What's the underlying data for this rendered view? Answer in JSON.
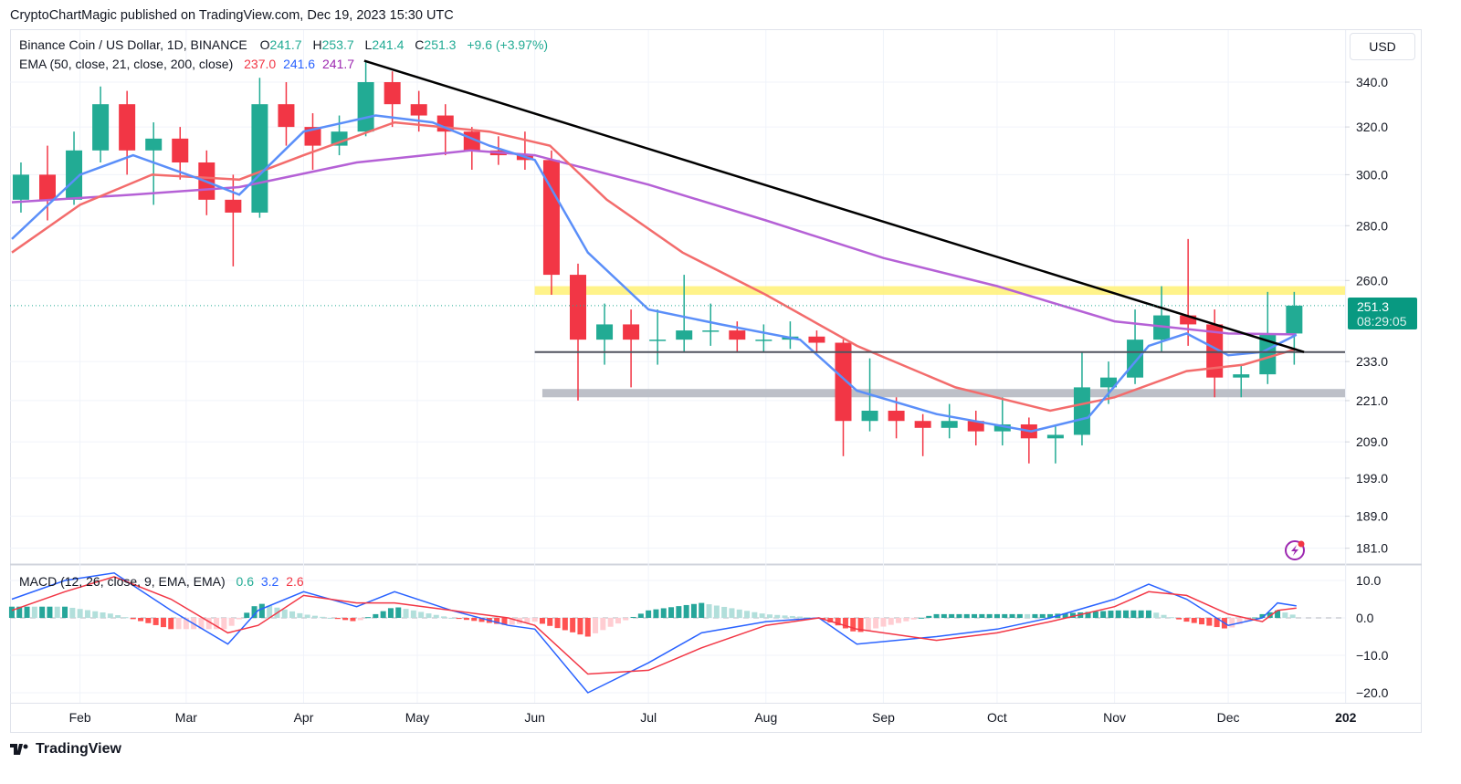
{
  "header": {
    "published": "CryptoChartMagic published on TradingView.com, Dec 19, 2023 15:30 UTC"
  },
  "legend": {
    "symbol": "Binance Coin / US Dollar, 1D, BINANCE",
    "o_label": "O",
    "o": "241.7",
    "h_label": "H",
    "h": "253.7",
    "l_label": "L",
    "l": "241.4",
    "c_label": "C",
    "c": "251.3",
    "change": "+9.6 (+3.97%)",
    "ema_label": "EMA (50, close, 21, close, 200, close)",
    "ema50": "237.0",
    "ema21": "241.6",
    "ema200": "241.7",
    "macd_label": "MACD (12, 26, close, 9, EMA, EMA)",
    "macd_hist": "0.6",
    "macd": "3.2",
    "macd_signal": "2.6"
  },
  "currency": "USD",
  "last_price": {
    "value": "251.3",
    "countdown": "08:29:05"
  },
  "footer": {
    "brand": "TradingView"
  },
  "colors": {
    "up": "#22ab94",
    "down": "#f23645",
    "ema21": "#5b8ff9",
    "ema50": "#f36c6c",
    "ema200": "#b561d6",
    "resistance": "#fff176",
    "support": "#b2b5be",
    "trendline": "#000000",
    "macd": "#2962ff",
    "signal": "#f23645"
  },
  "chart_data": {
    "type": "candlestick",
    "scale": "log",
    "ylim": [
      178,
      352
    ],
    "price_ticks": [
      "340.0",
      "320.0",
      "300.0",
      "280.0",
      "260.0",
      "233.0",
      "221.0",
      "209.0",
      "199.0",
      "189.0",
      "181.0"
    ],
    "time_ticks": [
      {
        "label": "Feb",
        "date": "2023-02-01"
      },
      {
        "label": "Mar",
        "date": "2023-03-01"
      },
      {
        "label": "Apr",
        "date": "2023-04-01"
      },
      {
        "label": "May",
        "date": "2023-05-01"
      },
      {
        "label": "Jun",
        "date": "2023-06-01"
      },
      {
        "label": "Jul",
        "date": "2023-07-01"
      },
      {
        "label": "Aug",
        "date": "2023-08-01"
      },
      {
        "label": "Sep",
        "date": "2023-09-01"
      },
      {
        "label": "Oct",
        "date": "2023-10-01"
      },
      {
        "label": "Nov",
        "date": "2023-11-01"
      },
      {
        "label": "Dec",
        "date": "2023-12-01"
      },
      {
        "label": "202",
        "date": "2024-01-01"
      }
    ],
    "candles_weekly_ohlc": [
      [
        "2023-01-14",
        290,
        305,
        285,
        300
      ],
      [
        "2023-01-21",
        300,
        312,
        282,
        290
      ],
      [
        "2023-01-28",
        290,
        318,
        288,
        310
      ],
      [
        "2023-02-04",
        310,
        338,
        305,
        330
      ],
      [
        "2023-02-11",
        330,
        336,
        300,
        310
      ],
      [
        "2023-02-18",
        310,
        322,
        288,
        315
      ],
      [
        "2023-02-25",
        315,
        320,
        298,
        305
      ],
      [
        "2023-03-04",
        305,
        310,
        284,
        290
      ],
      [
        "2023-03-11",
        290,
        300,
        265,
        285
      ],
      [
        "2023-03-18",
        285,
        342,
        283,
        330
      ],
      [
        "2023-03-25",
        330,
        340,
        312,
        320
      ],
      [
        "2023-04-01",
        320,
        326,
        302,
        312
      ],
      [
        "2023-04-08",
        312,
        325,
        308,
        318
      ],
      [
        "2023-04-15",
        318,
        350,
        316,
        340
      ],
      [
        "2023-04-22",
        340,
        345,
        320,
        330
      ],
      [
        "2023-04-29",
        330,
        336,
        318,
        325
      ],
      [
        "2023-05-06",
        325,
        330,
        308,
        318
      ],
      [
        "2023-05-13",
        318,
        320,
        302,
        310
      ],
      [
        "2023-05-20",
        310,
        316,
        304,
        308
      ],
      [
        "2023-05-27",
        308,
        318,
        302,
        306
      ],
      [
        "2023-06-03",
        306,
        310,
        255,
        262
      ],
      [
        "2023-06-10",
        262,
        266,
        221,
        240
      ],
      [
        "2023-06-17",
        240,
        252,
        232,
        245
      ],
      [
        "2023-06-24",
        245,
        250,
        225,
        240
      ],
      [
        "2023-07-01",
        240,
        250,
        232,
        240
      ],
      [
        "2023-07-08",
        240,
        262,
        236,
        243
      ],
      [
        "2023-07-15",
        243,
        252,
        238,
        243
      ],
      [
        "2023-07-22",
        243,
        246,
        236,
        240
      ],
      [
        "2023-07-29",
        240,
        245,
        236,
        240
      ],
      [
        "2023-08-05",
        240,
        246,
        237,
        241
      ],
      [
        "2023-08-12",
        241,
        243,
        236,
        239
      ],
      [
        "2023-08-19",
        239,
        240,
        205,
        215
      ],
      [
        "2023-08-26",
        215,
        234,
        212,
        218
      ],
      [
        "2023-09-02",
        218,
        222,
        210,
        215
      ],
      [
        "2023-09-09",
        215,
        217,
        205,
        213
      ],
      [
        "2023-09-16",
        213,
        220,
        210,
        215
      ],
      [
        "2023-09-23",
        215,
        218,
        208,
        212
      ],
      [
        "2023-09-30",
        212,
        222,
        208,
        214
      ],
      [
        "2023-10-07",
        214,
        216,
        203,
        210
      ],
      [
        "2023-10-14",
        210,
        214,
        203,
        211
      ],
      [
        "2023-10-21",
        211,
        236,
        208,
        225
      ],
      [
        "2023-10-28",
        225,
        233,
        220,
        228
      ],
      [
        "2023-11-04",
        228,
        250,
        226,
        240
      ],
      [
        "2023-11-11",
        240,
        258,
        236,
        248
      ],
      [
        "2023-11-18",
        248,
        275,
        238,
        245
      ],
      [
        "2023-11-25",
        245,
        250,
        222,
        228
      ],
      [
        "2023-12-02",
        228,
        232,
        222,
        229
      ],
      [
        "2023-12-09",
        229,
        256,
        226,
        242
      ],
      [
        "2023-12-16",
        242,
        256,
        232,
        251.3
      ]
    ],
    "ema21": [
      [
        "2023-01-14",
        275
      ],
      [
        "2023-02-01",
        300
      ],
      [
        "2023-02-15",
        308
      ],
      [
        "2023-03-05",
        298
      ],
      [
        "2023-03-15",
        292
      ],
      [
        "2023-04-01",
        318
      ],
      [
        "2023-04-20",
        325
      ],
      [
        "2023-05-05",
        322
      ],
      [
        "2023-05-20",
        312
      ],
      [
        "2023-06-01",
        306
      ],
      [
        "2023-06-15",
        270
      ],
      [
        "2023-07-01",
        250
      ],
      [
        "2023-07-20",
        245
      ],
      [
        "2023-08-10",
        240
      ],
      [
        "2023-08-25",
        224
      ],
      [
        "2023-09-15",
        217
      ],
      [
        "2023-10-10",
        212
      ],
      [
        "2023-10-25",
        216
      ],
      [
        "2023-11-10",
        238
      ],
      [
        "2023-11-20",
        242
      ],
      [
        "2023-12-01",
        235
      ],
      [
        "2023-12-10",
        236
      ],
      [
        "2023-12-19",
        241.6
      ]
    ],
    "ema50": [
      [
        "2023-01-14",
        270
      ],
      [
        "2023-02-01",
        288
      ],
      [
        "2023-02-20",
        300
      ],
      [
        "2023-03-15",
        298
      ],
      [
        "2023-04-01",
        308
      ],
      [
        "2023-04-25",
        322
      ],
      [
        "2023-05-20",
        318
      ],
      [
        "2023-06-05",
        312
      ],
      [
        "2023-06-20",
        290
      ],
      [
        "2023-07-10",
        270
      ],
      [
        "2023-08-01",
        255
      ],
      [
        "2023-08-25",
        238
      ],
      [
        "2023-09-20",
        225
      ],
      [
        "2023-10-15",
        218
      ],
      [
        "2023-11-01",
        222
      ],
      [
        "2023-11-20",
        230
      ],
      [
        "2023-12-05",
        232
      ],
      [
        "2023-12-19",
        237.0
      ]
    ],
    "ema200": [
      [
        "2023-01-14",
        289
      ],
      [
        "2023-02-15",
        292
      ],
      [
        "2023-03-15",
        295
      ],
      [
        "2023-04-15",
        305
      ],
      [
        "2023-05-15",
        310
      ],
      [
        "2023-06-01",
        308
      ],
      [
        "2023-07-01",
        296
      ],
      [
        "2023-08-01",
        282
      ],
      [
        "2023-09-01",
        268
      ],
      [
        "2023-10-01",
        258
      ],
      [
        "2023-11-01",
        246
      ],
      [
        "2023-12-01",
        242
      ],
      [
        "2023-12-19",
        241.7
      ]
    ],
    "trendline": {
      "from": [
        "2023-04-17",
        350
      ],
      "to": [
        "2023-12-21",
        236
      ]
    },
    "resistance_zone": {
      "from": "2023-06-01",
      "range": [
        255,
        258
      ]
    },
    "support_zone": {
      "from": "2023-06-03",
      "range": [
        222,
        224.5
      ]
    },
    "horizontal_line": {
      "from": "2023-06-01",
      "value": 236
    },
    "macd_pane": {
      "ticks": [
        "10.0",
        "0.0",
        "−10.0",
        "−20.0"
      ],
      "tick_values": [
        10,
        0,
        -10,
        -20
      ],
      "macd": [
        [
          "2023-01-14",
          5
        ],
        [
          "2023-01-28",
          10
        ],
        [
          "2023-02-10",
          12
        ],
        [
          "2023-02-25",
          2
        ],
        [
          "2023-03-12",
          -7
        ],
        [
          "2023-03-20",
          2
        ],
        [
          "2023-04-01",
          7
        ],
        [
          "2023-04-15",
          3
        ],
        [
          "2023-04-25",
          7
        ],
        [
          "2023-05-10",
          2
        ],
        [
          "2023-05-25",
          -2
        ],
        [
          "2023-06-01",
          -3
        ],
        [
          "2023-06-15",
          -20
        ],
        [
          "2023-07-01",
          -12
        ],
        [
          "2023-07-15",
          -4
        ],
        [
          "2023-08-01",
          -1
        ],
        [
          "2023-08-15",
          0
        ],
        [
          "2023-08-25",
          -7
        ],
        [
          "2023-09-15",
          -5
        ],
        [
          "2023-10-01",
          -3
        ],
        [
          "2023-10-15",
          0
        ],
        [
          "2023-11-01",
          5
        ],
        [
          "2023-11-10",
          9
        ],
        [
          "2023-11-20",
          5
        ],
        [
          "2023-12-01",
          -2
        ],
        [
          "2023-12-10",
          0
        ],
        [
          "2023-12-14",
          4
        ],
        [
          "2023-12-19",
          3.2
        ]
      ],
      "signal": [
        [
          "2023-01-14",
          2
        ],
        [
          "2023-01-28",
          7
        ],
        [
          "2023-02-10",
          11
        ],
        [
          "2023-02-25",
          5
        ],
        [
          "2023-03-12",
          -4
        ],
        [
          "2023-03-20",
          -2
        ],
        [
          "2023-04-01",
          6
        ],
        [
          "2023-04-15",
          4
        ],
        [
          "2023-04-25",
          4
        ],
        [
          "2023-05-10",
          2
        ],
        [
          "2023-05-25",
          0
        ],
        [
          "2023-06-01",
          -2
        ],
        [
          "2023-06-15",
          -15
        ],
        [
          "2023-07-01",
          -14
        ],
        [
          "2023-07-15",
          -8
        ],
        [
          "2023-08-01",
          -2
        ],
        [
          "2023-08-15",
          0
        ],
        [
          "2023-08-25",
          -3
        ],
        [
          "2023-09-15",
          -6
        ],
        [
          "2023-10-01",
          -4
        ],
        [
          "2023-10-15",
          -1
        ],
        [
          "2023-11-01",
          3
        ],
        [
          "2023-11-10",
          7
        ],
        [
          "2023-11-20",
          6
        ],
        [
          "2023-12-01",
          1
        ],
        [
          "2023-12-10",
          -1
        ],
        [
          "2023-12-14",
          2
        ],
        [
          "2023-12-19",
          2.6
        ]
      ]
    }
  }
}
